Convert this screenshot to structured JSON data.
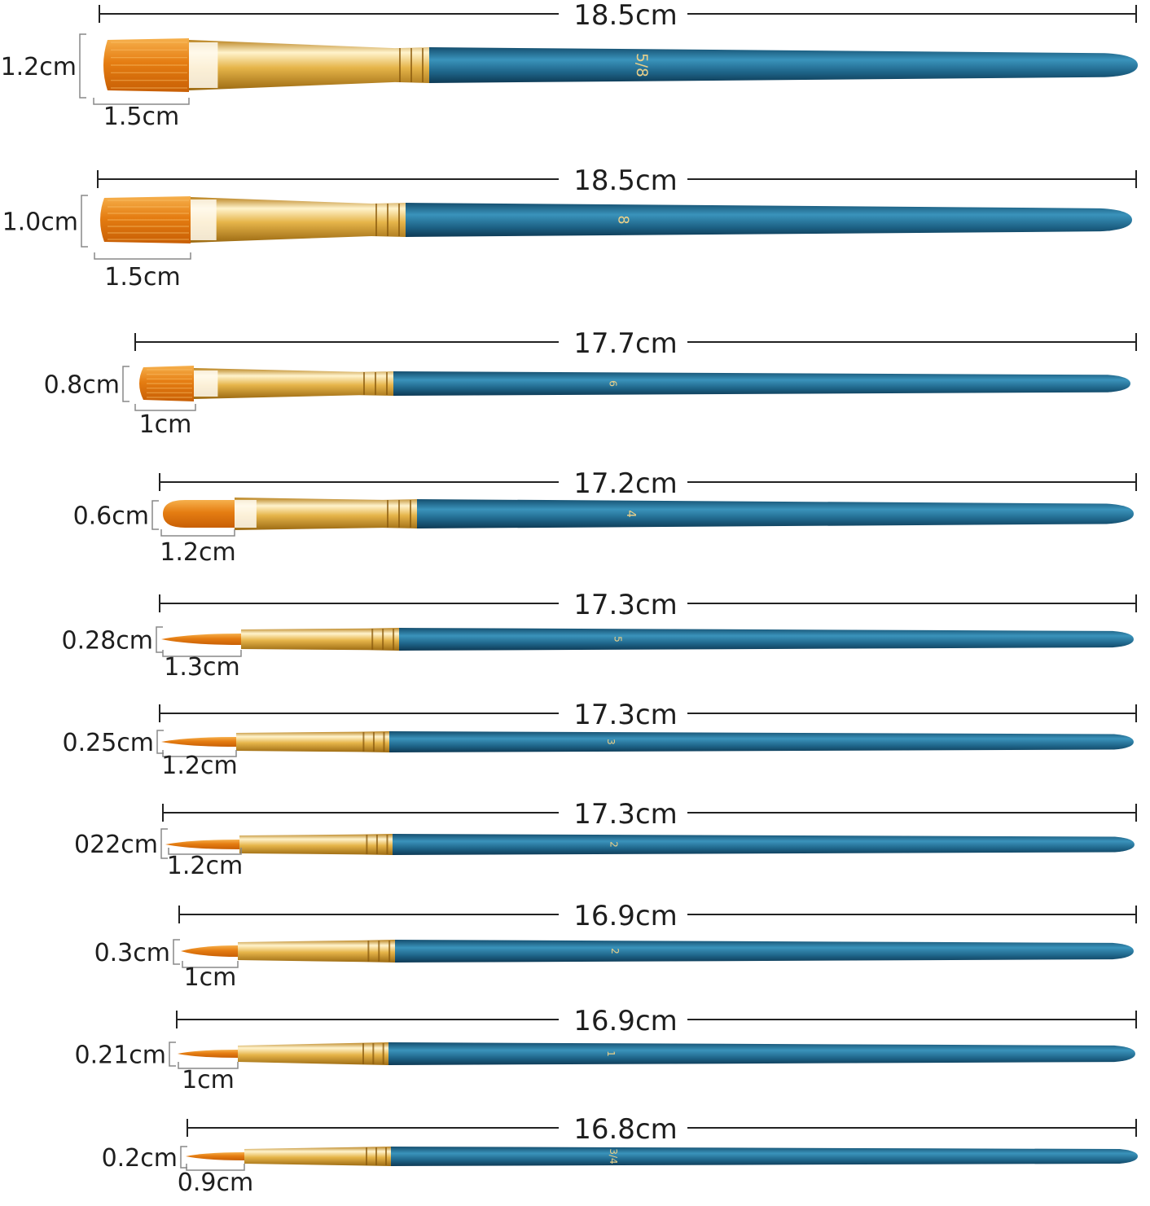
{
  "colors": {
    "bristle_dark": "#d86a08",
    "bristle_light": "#f3a640",
    "ferrule_gold": "#d9a233",
    "ferrule_light": "#fff3cc",
    "handle_blue": "#1e6488",
    "handle_light": "#3a93bb",
    "handle_dark": "#103f5c",
    "dimension_line": "#222222",
    "label_text": "#1e1e1e"
  },
  "brushes": [
    {
      "shape": "flat",
      "length": "18.5cm",
      "width": "1.2cm",
      "head": "1.5cm",
      "number": "5/8"
    },
    {
      "shape": "flat",
      "length": "18.5cm",
      "width": "1.0cm",
      "head": "1.5cm",
      "number": "8"
    },
    {
      "shape": "flat",
      "length": "17.7cm",
      "width": "0.8cm",
      "head": "1cm",
      "number": "6"
    },
    {
      "shape": "filbert",
      "length": "17.2cm",
      "width": "0.6cm",
      "head": "1.2cm",
      "number": "4"
    },
    {
      "shape": "round",
      "length": "17.3cm",
      "width": "0.28cm",
      "head": "1.3cm",
      "number": "5"
    },
    {
      "shape": "round",
      "length": "17.3cm",
      "width": "0.25cm",
      "head": "1.2cm",
      "number": "3"
    },
    {
      "shape": "round",
      "length": "17.3cm",
      "width": "022cm",
      "head": "1.2cm",
      "number": "2"
    },
    {
      "shape": "round",
      "length": "16.9cm",
      "width": "0.3cm",
      "head": "1cm",
      "number": "2"
    },
    {
      "shape": "round",
      "length": "16.9cm",
      "width": "0.21cm",
      "head": "1cm",
      "number": "1"
    },
    {
      "shape": "round",
      "length": "16.8cm",
      "width": "0.2cm",
      "head": "0.9cm",
      "number": "3/4"
    }
  ]
}
